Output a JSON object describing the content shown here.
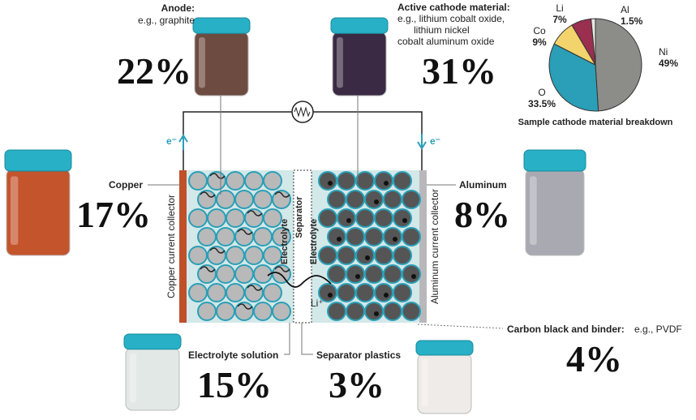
{
  "anode": {
    "label": "Anode:",
    "description": "e.g., graphite",
    "percent": "22%"
  },
  "cathode": {
    "label": "Active cathode material:",
    "description": [
      "e.g., lithium cobalt oxide,",
      "lithium nickel",
      "cobalt aluminum oxide"
    ],
    "percent": "31%"
  },
  "copper": {
    "label": "Copper",
    "percent": "17%"
  },
  "aluminum": {
    "label": "Aluminum",
    "percent": "8%"
  },
  "electrolyte_solution": {
    "label": "Electrolyte solution",
    "percent": "15%"
  },
  "separator_plastics": {
    "label": "Separator plastics",
    "percent": "3%"
  },
  "carbon_black": {
    "label": "Carbon black and binder:",
    "description": "e.g., PVDF",
    "percent": "4%"
  },
  "cell": {
    "copper_collector": "Copper current collector",
    "aluminum_collector": "Aluminum current collector",
    "electrolyte_left": "Electrolyte",
    "separator": "Separator",
    "electrolyte_right": "Electrolyte",
    "ion": "Li⁺",
    "electron_left": "e⁻",
    "electron_right": "e⁻"
  },
  "chart_data": {
    "type": "pie",
    "title": "Sample cathode material breakdown",
    "categories": [
      "Ni",
      "O",
      "Co",
      "Li",
      "Al"
    ],
    "values": [
      49,
      33.5,
      9,
      7,
      1.5
    ],
    "value_labels": [
      "49%",
      "33.5%",
      "9%",
      "7%",
      "1.5%"
    ],
    "colors": [
      "#8c8c88",
      "#2a9fb7",
      "#f3d46c",
      "#9a2f4f",
      "#e6e6e6"
    ]
  }
}
